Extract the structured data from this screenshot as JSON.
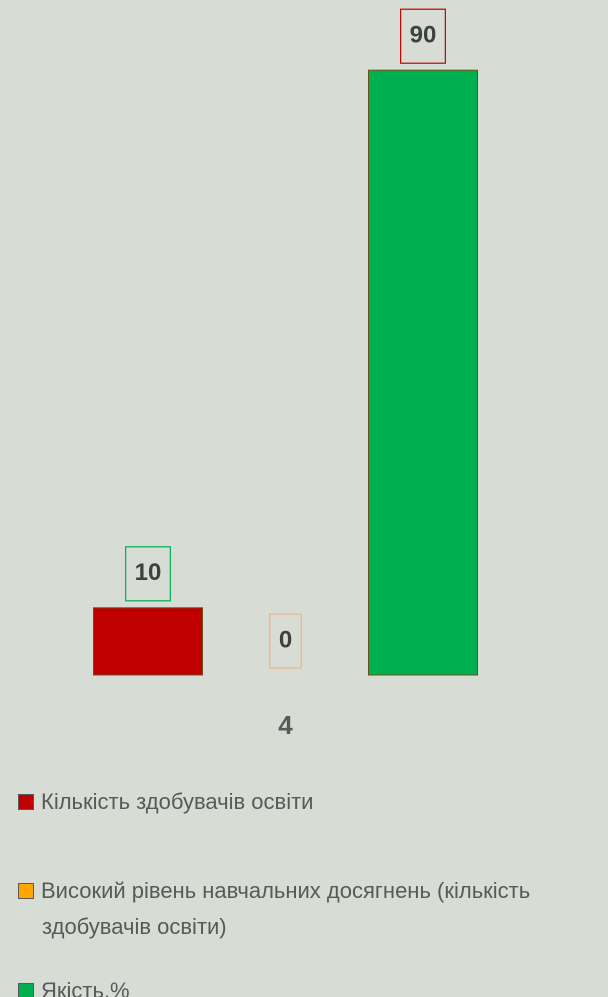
{
  "chart_data": {
    "type": "bar",
    "categories": [
      "4"
    ],
    "series": [
      {
        "name": "Кількість здобувачів освіти",
        "color": "#c00000",
        "values": [
          10
        ]
      },
      {
        "name": "Високий рівень навчальних досягнень (кількість здобувачів освіти)",
        "color": "#ffa500",
        "values": [
          0
        ]
      },
      {
        "name": "Якість,%",
        "color": "#00b050",
        "values": [
          90
        ]
      }
    ],
    "ylim": [
      0,
      100
    ]
  }
}
